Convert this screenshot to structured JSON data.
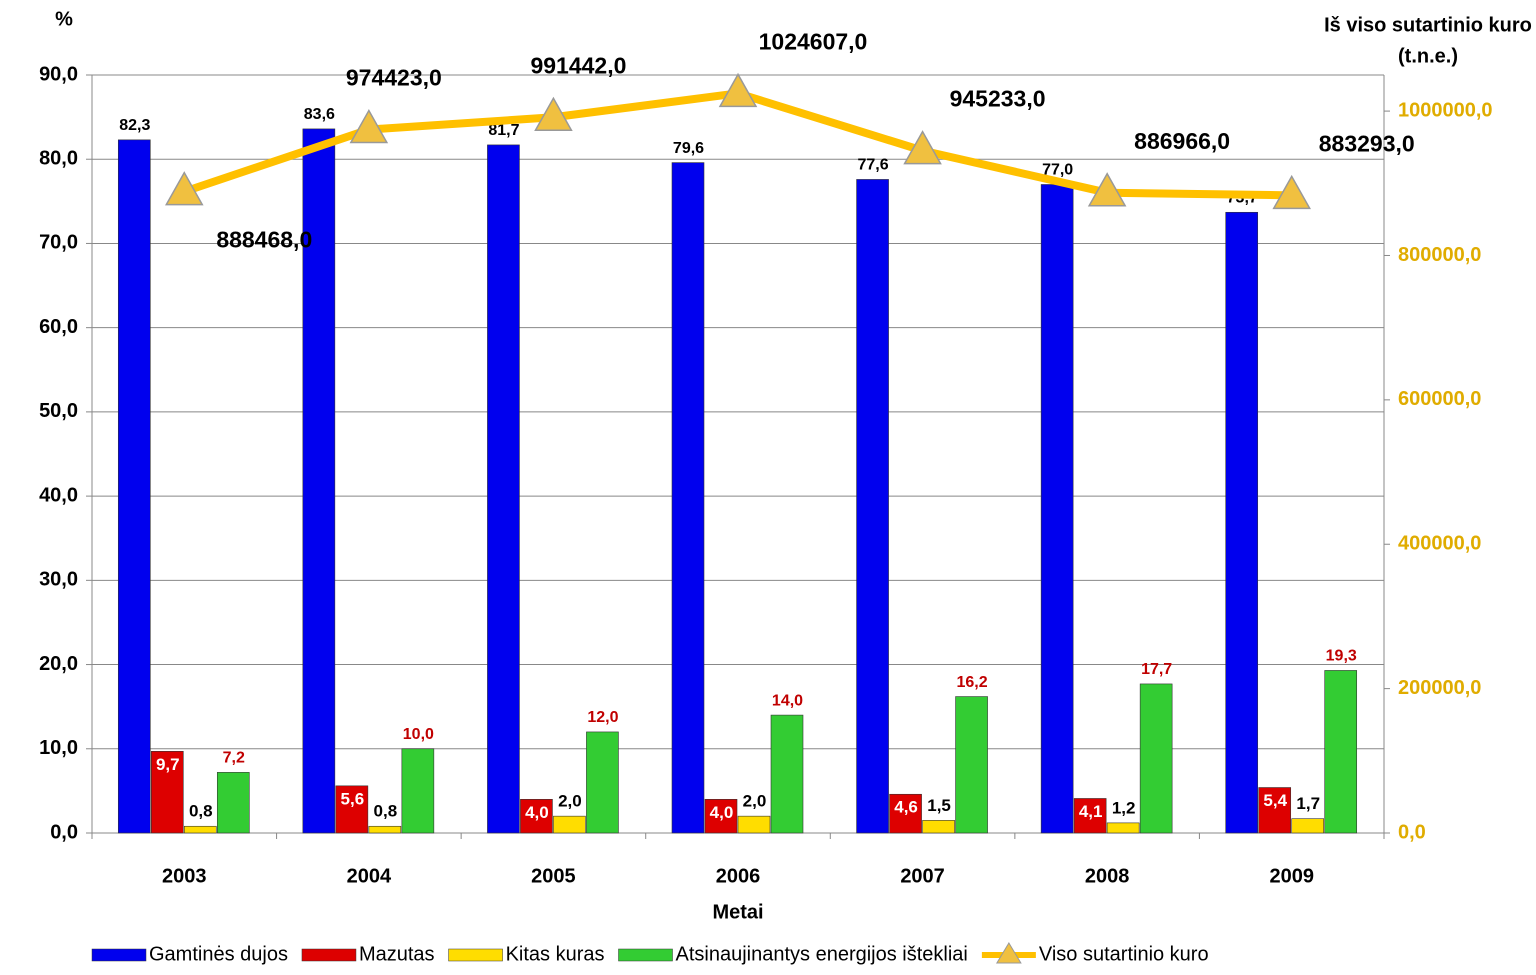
{
  "chart_data": {
    "type": "bar",
    "y_label": "%",
    "y2_label": [
      "Iš viso sutartinio kuro",
      "(t.n.e.)"
    ],
    "x_label": "Metai",
    "categories": [
      "2003",
      "2004",
      "2005",
      "2006",
      "2007",
      "2008",
      "2009"
    ],
    "series": [
      {
        "name": "Gamtinės dujos",
        "color": "#0000ee",
        "label_color": "#000000",
        "values": [
          82.3,
          83.6,
          81.7,
          79.6,
          77.6,
          77.0,
          73.7
        ],
        "value_labels": [
          "82,3",
          "83,6",
          "81,7",
          "79,6",
          "77,6",
          "77,0",
          "73,7"
        ]
      },
      {
        "name": "Mazutas",
        "color": "#dd0000",
        "label_color": "#ffffff",
        "values": [
          9.7,
          5.6,
          4.0,
          4.0,
          4.6,
          4.1,
          5.4
        ],
        "value_labels": [
          "9,7",
          "5,6",
          "4,0",
          "4,0",
          "4,6",
          "4,1",
          "5,4"
        ]
      },
      {
        "name": "Kitas kuras",
        "color": "#ffdd00",
        "label_color": "#000000",
        "values": [
          0.8,
          0.8,
          2.0,
          2.0,
          1.5,
          1.2,
          1.7
        ],
        "value_labels": [
          "0,8",
          "0,8",
          "2,0",
          "2,0",
          "1,5",
          "1,2",
          "1,7"
        ]
      },
      {
        "name": "Atsinaujinantys energijos ištekliai",
        "color": "#33cc33",
        "label_color": "#c00000",
        "values": [
          7.2,
          10.0,
          12.0,
          14.0,
          16.2,
          17.7,
          19.3
        ],
        "value_labels": [
          "7,2",
          "10,0",
          "12,0",
          "14,0",
          "16,2",
          "17,7",
          "19,3"
        ]
      },
      {
        "name": "Viso sutartinio kuro",
        "type": "line",
        "axis": "y2",
        "color": "#ffc000",
        "label_color": "#000000",
        "values": [
          888468,
          974423,
          991442,
          1024607,
          945233,
          886966,
          883293
        ],
        "value_labels": [
          "888468,0",
          "974423,0",
          "991442,0",
          "1024607,0",
          "945233,0",
          "886966,0",
          "883293,0"
        ]
      }
    ],
    "ylim": [
      0,
      90
    ],
    "yticks": [
      {
        "value": 0,
        "label": "0,0"
      },
      {
        "value": 10,
        "label": "10,0"
      },
      {
        "value": 20,
        "label": "20,0"
      },
      {
        "value": 30,
        "label": "30,0"
      },
      {
        "value": 40,
        "label": "40,0"
      },
      {
        "value": 50,
        "label": "50,0"
      },
      {
        "value": 60,
        "label": "60,0"
      },
      {
        "value": 70,
        "label": "70,0"
      },
      {
        "value": 80,
        "label": "80,0"
      },
      {
        "value": 90,
        "label": "90,0"
      }
    ],
    "y2lim": [
      0,
      1050000
    ],
    "y2ticks": [
      {
        "value": 0,
        "label": "0,0"
      },
      {
        "value": 200000,
        "label": "200000,0"
      },
      {
        "value": 400000,
        "label": "400000,0"
      },
      {
        "value": 600000,
        "label": "600000,0"
      },
      {
        "value": 800000,
        "label": "800000,0"
      },
      {
        "value": 1000000,
        "label": "1000000,0"
      }
    ],
    "y2_color": "#e0ac00",
    "grid": true,
    "legend": "bottom"
  }
}
